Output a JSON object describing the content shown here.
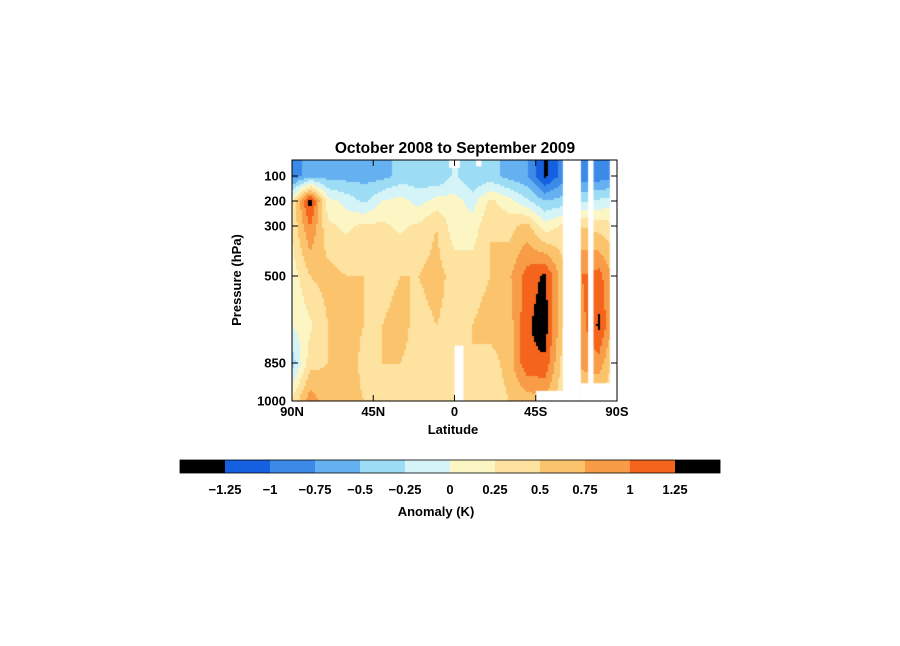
{
  "chart_data": {
    "type": "heatmap",
    "title": "October 2008 to September 2009",
    "xlabel": "Latitude",
    "ylabel": "Pressure (hPa)",
    "x_ticks": [
      {
        "value": 90,
        "label": "90N"
      },
      {
        "value": 45,
        "label": "45N"
      },
      {
        "value": 0,
        "label": "0"
      },
      {
        "value": -45,
        "label": "45S"
      },
      {
        "value": -90,
        "label": "90S"
      }
    ],
    "xlim": [
      90,
      -90
    ],
    "y_ticks": [
      100,
      200,
      300,
      500,
      850,
      1000
    ],
    "ylim": [
      50,
      1000
    ],
    "y_scale": "reverse",
    "colorbar": {
      "label": "Anomaly (K)",
      "levels": [
        "-1.25",
        "-1",
        "-0.75",
        "-0.5",
        "-0.25",
        "0",
        "0.25",
        "0.5",
        "0.75",
        "1",
        "1.25"
      ],
      "colors": [
        "#000000",
        "#1560e0",
        "#3c8ae8",
        "#64b0f0",
        "#9cdcf4",
        "#d4f4f8",
        "#fcf6c4",
        "#fde2a0",
        "#fbc46c",
        "#f89c48",
        "#f4641c",
        "#000000"
      ]
    },
    "lat_grid": [
      90,
      80,
      70,
      60,
      50,
      40,
      30,
      20,
      10,
      0,
      -10,
      -20,
      -30,
      -40,
      -50,
      -60,
      -70,
      -80,
      -90
    ],
    "pressure_grid": [
      100,
      200,
      300,
      500,
      700,
      850,
      1000
    ],
    "anomaly_grid": [
      [
        -0.9,
        -0.6,
        -0.6,
        -0.6,
        -0.6,
        -0.6,
        -0.4,
        -0.4,
        -0.5,
        -0.2,
        -0.5,
        -0.4,
        -0.6,
        -0.7,
        -1.3,
        -0.9,
        -0.9,
        -0.9,
        -0.8
      ],
      [
        0.2,
        1.4,
        0.1,
        -0.1,
        -0.3,
        0.0,
        0.1,
        -0.1,
        0.1,
        0.1,
        -0.1,
        0.3,
        0.1,
        -0.2,
        -0.5,
        -0.4,
        -0.3,
        -0.2,
        -0.1
      ],
      [
        0.3,
        1.0,
        0.3,
        0.2,
        0.3,
        0.3,
        0.2,
        0.3,
        0.5,
        0.1,
        0.1,
        0.5,
        0.4,
        0.6,
        0.1,
        0.3,
        0.5,
        0.4,
        0.3
      ],
      [
        0.1,
        0.5,
        0.6,
        0.5,
        0.5,
        0.4,
        0.5,
        0.5,
        0.6,
        0.4,
        0.4,
        0.5,
        0.7,
        1.1,
        1.3,
        0.6,
        1.0,
        1.1,
        0.6
      ],
      [
        0.0,
        0.2,
        0.5,
        0.6,
        0.5,
        0.5,
        0.6,
        0.4,
        0.5,
        0.4,
        0.5,
        0.6,
        0.6,
        1.2,
        1.4,
        0.5,
        0.9,
        1.3,
        0.5
      ],
      [
        -0.4,
        0.4,
        0.5,
        0.7,
        0.4,
        0.5,
        0.5,
        0.4,
        0.4,
        0.3,
        0.5,
        0.4,
        0.6,
        1.2,
        1.2,
        0.4,
        0.8,
        0.9,
        0.3
      ],
      [
        0.3,
        0.9,
        0.6,
        0.6,
        0.5,
        0.5,
        0.4,
        0.3,
        0.4,
        0.3,
        0.4,
        0.3,
        0.5,
        0.6,
        0.7,
        0.3,
        0.5,
        0.4,
        0.3
      ]
    ],
    "masked_regions": [
      {
        "lat": [
          -60,
          -70
        ],
        "pressure": [
          50,
          1000
        ]
      },
      {
        "lat": [
          -74,
          -77
        ],
        "pressure": [
          50,
          1000
        ]
      },
      {
        "lat": [
          -86,
          -90
        ],
        "pressure": [
          50,
          1000
        ]
      },
      {
        "lat": [
          -70,
          -90
        ],
        "pressure": [
          930,
          1000
        ]
      },
      {
        "lat": [
          -45,
          -60
        ],
        "pressure": [
          960,
          1000
        ]
      },
      {
        "lat": [
          3,
          -3
        ],
        "pressure": [
          50,
          75
        ]
      },
      {
        "lat": [
          0,
          -5
        ],
        "pressure": [
          780,
          1000
        ]
      },
      {
        "lat": [
          -12,
          -15
        ],
        "pressure": [
          50,
          70
        ]
      }
    ],
    "grid": false
  }
}
